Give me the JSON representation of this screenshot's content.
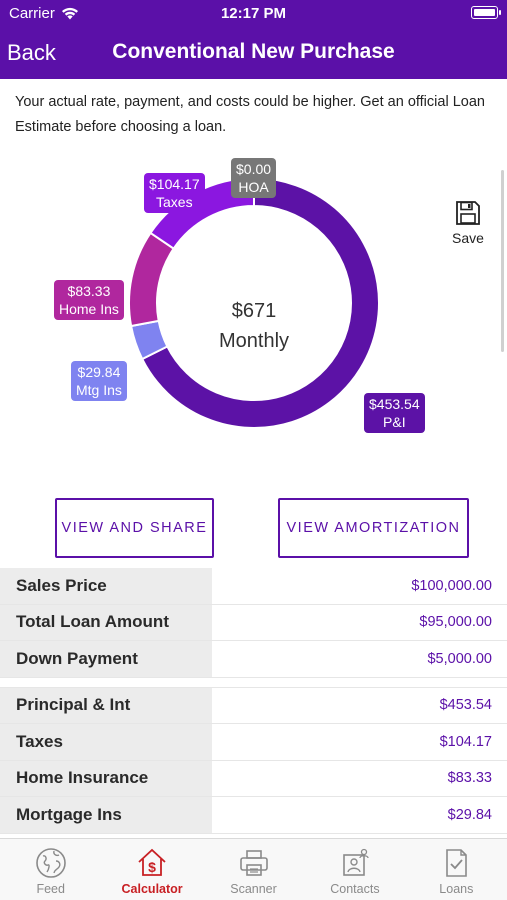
{
  "status_bar": {
    "carrier": "Carrier",
    "time": "12:17 PM"
  },
  "nav": {
    "back_label": "Back",
    "title": "Conventional New Purchase"
  },
  "disclaimer": "Your actual rate, payment, and costs could be higher. Get an official Loan Estimate before choosing a loan.",
  "save_label": "Save",
  "chart_data": {
    "type": "pie",
    "style": "donut",
    "center": {
      "amount": "$671",
      "label": "Monthly"
    },
    "slices": [
      {
        "name": "P&I",
        "value": 453.54,
        "label": "$453.54",
        "color": "#5c12a6"
      },
      {
        "name": "Mtg Ins",
        "value": 29.84,
        "label": "$29.84",
        "color": "#7f83f0"
      },
      {
        "name": "Home Ins",
        "value": 83.33,
        "label": "$83.33",
        "color": "#b0279e"
      },
      {
        "name": "Taxes",
        "value": 104.17,
        "label": "$104.17",
        "color": "#8b17e0"
      },
      {
        "name": "HOA",
        "value": 0.0,
        "label": "$0.00",
        "color": "#777777"
      }
    ]
  },
  "buttons": {
    "view_share": "VIEW AND SHARE",
    "view_amortization": "VIEW AMORTIZATION"
  },
  "summary": [
    {
      "label": "Sales Price",
      "value": "$100,000.00"
    },
    {
      "label": "Total Loan Amount",
      "value": "$95,000.00"
    },
    {
      "label": "Down Payment",
      "value": "$5,000.00"
    }
  ],
  "payment": [
    {
      "label": "Principal & Int",
      "value": "$453.54"
    },
    {
      "label": "Taxes",
      "value": "$104.17"
    },
    {
      "label": "Home Insurance",
      "value": "$83.33"
    },
    {
      "label": "Mortgage Ins",
      "value": "$29.84"
    }
  ],
  "tabs": [
    {
      "label": "Feed",
      "icon": "globe-icon",
      "active": false
    },
    {
      "label": "Calculator",
      "icon": "calculator-house-icon",
      "active": true
    },
    {
      "label": "Scanner",
      "icon": "printer-icon",
      "active": false
    },
    {
      "label": "Contacts",
      "icon": "contacts-icon",
      "active": false
    },
    {
      "label": "Loans",
      "icon": "document-check-icon",
      "active": false
    }
  ]
}
